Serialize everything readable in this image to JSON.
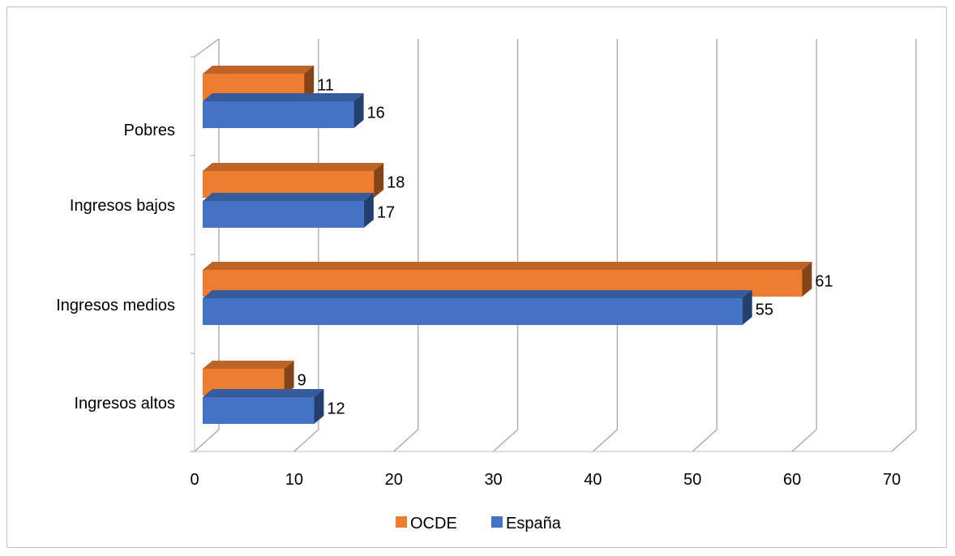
{
  "chart_data": {
    "type": "bar",
    "orientation": "horizontal",
    "style": "3d-clustered",
    "categories": [
      "Pobres",
      "Ingresos bajos",
      "Ingresos medios",
      "Ingresos altos"
    ],
    "series": [
      {
        "name": "OCDE",
        "color": "#ED7D31",
        "values": [
          11,
          18,
          61,
          9
        ]
      },
      {
        "name": "España",
        "color": "#4472C4",
        "values": [
          16,
          17,
          55,
          12
        ]
      }
    ],
    "xlim": [
      0,
      70
    ],
    "xticks": [
      "0",
      "10",
      "20",
      "30",
      "40",
      "50",
      "60",
      "70"
    ],
    "grid": true,
    "legend": "bottom",
    "title": "",
    "xlabel": "",
    "ylabel": ""
  }
}
